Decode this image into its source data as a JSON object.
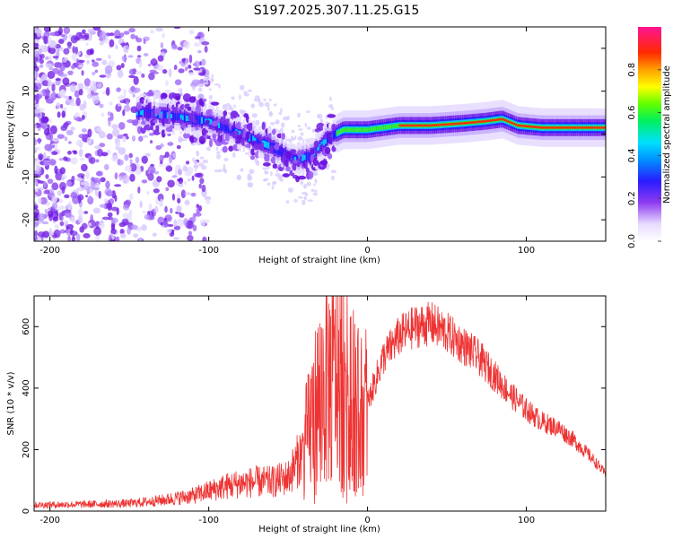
{
  "title": "S197.2025.307.11.25.G15",
  "chart_data": [
    {
      "type": "heatmap",
      "xlabel": "Height of straight line (km)",
      "ylabel": "Frequency (Hz)",
      "xlim": [
        -210,
        150
      ],
      "ylim": [
        -25,
        25
      ],
      "xticks": [
        -200,
        -100,
        0,
        100
      ],
      "yticks": [
        -20,
        -10,
        0,
        10,
        20
      ],
      "colorbar": {
        "label": "Normalized spectral amplitude",
        "range": [
          0,
          1
        ],
        "ticks": [
          "0.0",
          "0.2",
          "0.4",
          "0.6",
          "0.8"
        ]
      },
      "ridge": {
        "x": [
          -140,
          -120,
          -100,
          -80,
          -60,
          -45,
          -35,
          -25,
          -15,
          0,
          20,
          40,
          60,
          75,
          85,
          95,
          110,
          150
        ],
        "frequency": [
          5,
          4,
          3,
          0,
          -3,
          -6,
          -5,
          -1,
          1,
          1,
          2,
          2,
          2.5,
          3,
          3.5,
          2,
          1.5,
          1.5
        ]
      }
    },
    {
      "type": "line",
      "xlabel": "Height of straight line (km)",
      "ylabel": "SNR (10 * v/v)",
      "xlim": [
        -210,
        150
      ],
      "ylim": [
        0,
        700
      ],
      "xticks": [
        -200,
        -100,
        0,
        100
      ],
      "yticks": [
        0,
        200,
        400,
        600
      ],
      "series": [
        {
          "name": "SNR",
          "color": "#ee3333",
          "x": [
            -210,
            -180,
            -150,
            -130,
            -110,
            -100,
            -90,
            -80,
            -70,
            -60,
            -50,
            -40,
            -35,
            -30,
            -25,
            -20,
            -15,
            -10,
            -5,
            0,
            10,
            20,
            30,
            40,
            50,
            60,
            70,
            80,
            90,
            100,
            110,
            120,
            130,
            140,
            150
          ],
          "y": [
            20,
            22,
            25,
            35,
            50,
            65,
            80,
            90,
            95,
            95,
            110,
            200,
            300,
            380,
            420,
            450,
            480,
            430,
            300,
            350,
            500,
            570,
            600,
            610,
            580,
            540,
            500,
            440,
            380,
            330,
            290,
            270,
            230,
            180,
            120
          ]
        }
      ]
    }
  ]
}
